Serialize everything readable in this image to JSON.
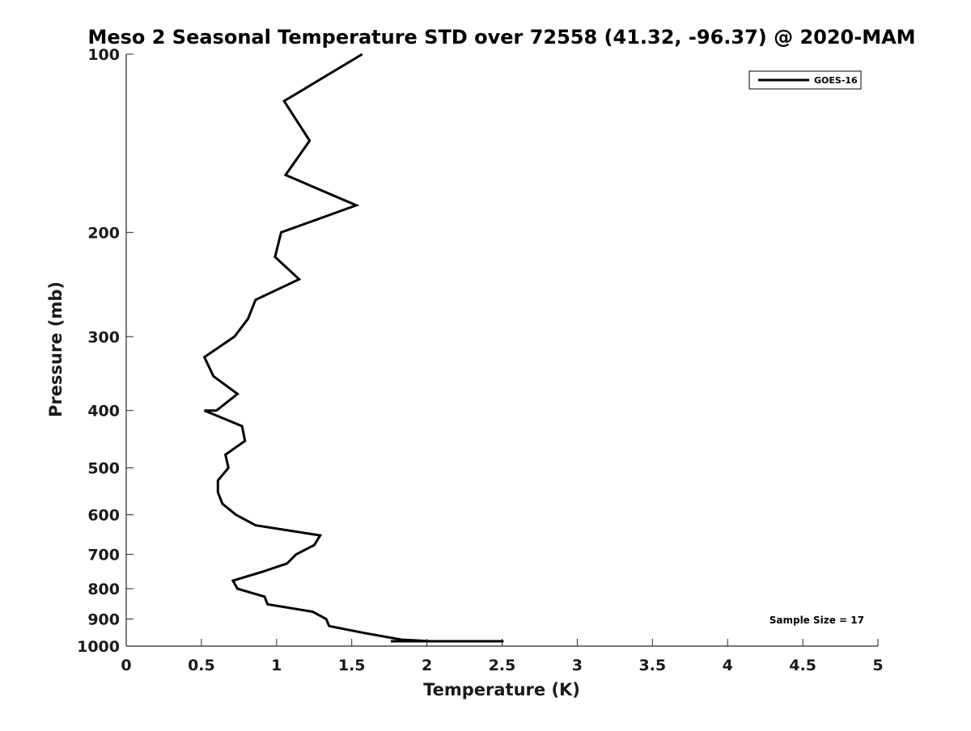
{
  "chart_data": {
    "type": "line",
    "title": "Meso 2 Seasonal Temperature STD over 72558 (41.32, -96.37) @ 2020-MAM",
    "xlabel": "Temperature (K)",
    "ylabel": "Pressure (mb)",
    "xlim": [
      0,
      5
    ],
    "ylim": [
      1000,
      100
    ],
    "y_scale": "log",
    "x_ticks": [
      0,
      0.5,
      1,
      1.5,
      2,
      2.5,
      3,
      3.5,
      4,
      4.5,
      5
    ],
    "x_tick_labels": [
      "0",
      "0.5",
      "1",
      "1.5",
      "2",
      "2.5",
      "3",
      "3.5",
      "4",
      "4.5",
      "5"
    ],
    "y_ticks": [
      100,
      200,
      300,
      400,
      500,
      600,
      700,
      800,
      900,
      1000
    ],
    "y_tick_labels": [
      "100",
      "200",
      "300",
      "400",
      "500",
      "600",
      "700",
      "800",
      "900",
      "1000"
    ],
    "grid": false,
    "legend_position": "top-right",
    "annotation": "Sample Size = 17",
    "line_color": "#000000",
    "series": [
      {
        "name": "GOES-16",
        "x": [
          1.57,
          1.05,
          1.22,
          1.06,
          1.53,
          1.03,
          0.99,
          1.15,
          0.86,
          0.81,
          0.72,
          0.52,
          0.58,
          0.74,
          0.6,
          0.52,
          0.77,
          0.79,
          0.66,
          0.68,
          0.61,
          0.61,
          0.64,
          0.73,
          0.86,
          1.29,
          1.25,
          1.13,
          1.07,
          0.9,
          0.71,
          0.74,
          0.92,
          0.94,
          1.24,
          1.33,
          1.35,
          1.58,
          1.83,
          2.02,
          2.51,
          2.31,
          2.21,
          1.76
        ],
        "y": [
          100,
          120,
          140,
          160,
          180,
          200,
          220,
          240,
          260,
          280,
          300,
          325,
          350,
          375,
          400,
          400,
          425,
          450,
          475,
          500,
          525,
          550,
          575,
          600,
          625,
          650,
          675,
          700,
          725,
          750,
          775,
          800,
          825,
          850,
          875,
          900,
          925,
          950,
          975,
          1000,
          1000,
          1000,
          1000,
          1000
        ]
      }
    ]
  }
}
